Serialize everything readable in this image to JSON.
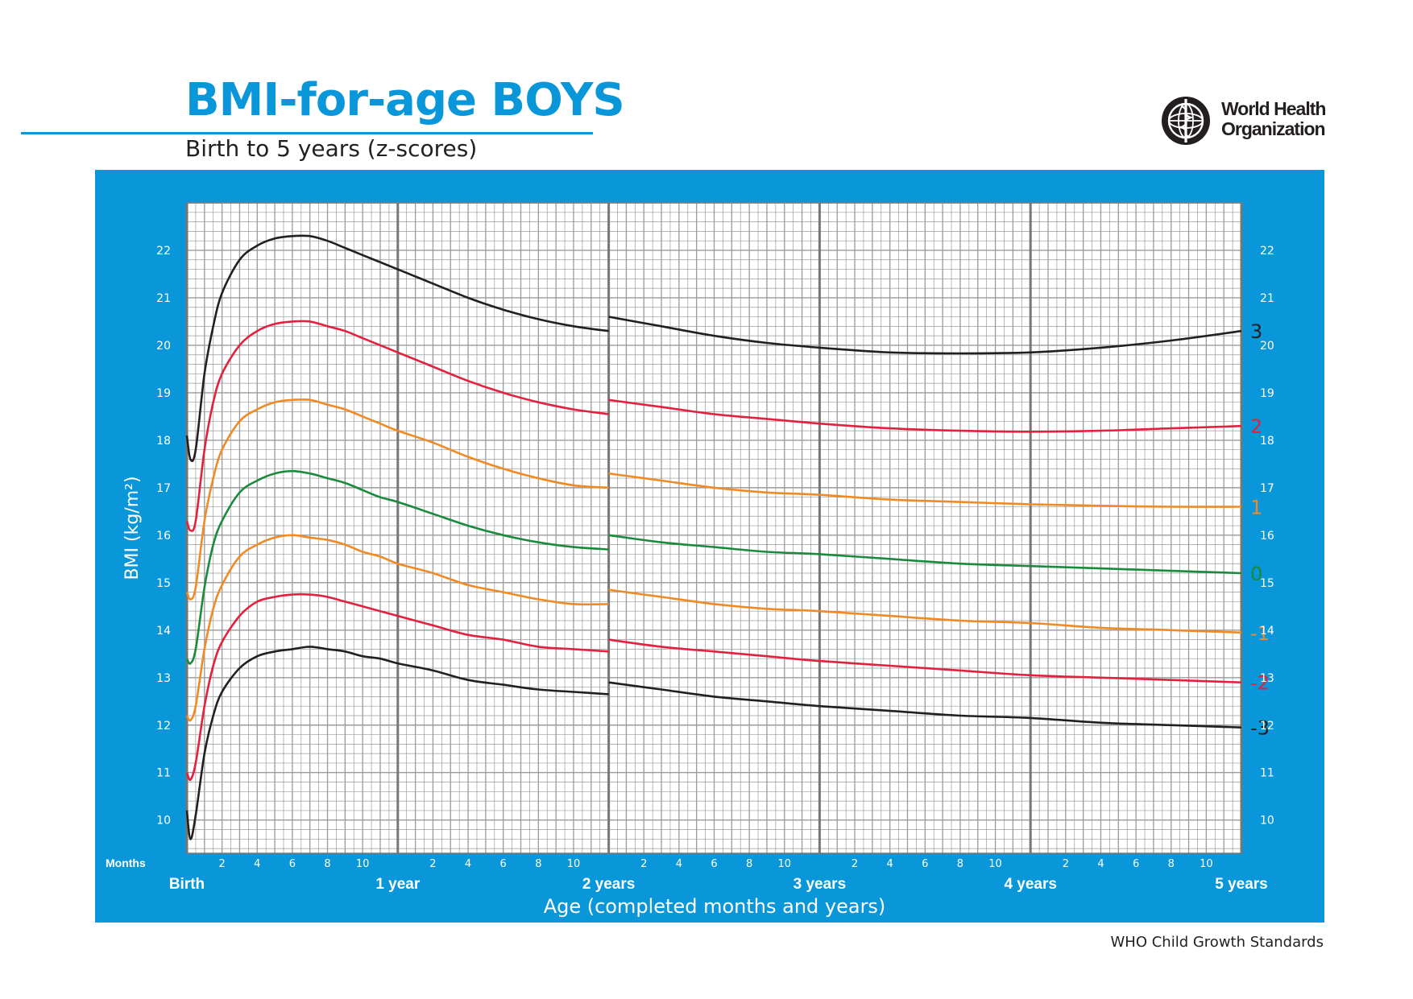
{
  "header": {
    "title": "BMI-for-age BOYS",
    "subtitle": "Birth to 5 years (z-scores)",
    "logo_line1": "World Health",
    "logo_line2": "Organization"
  },
  "footer": {
    "source": "WHO Child Growth Standards"
  },
  "colors": {
    "brand_blue": "#0a97d9",
    "z3": "#231f20",
    "z2": "#e2213f",
    "z1": "#f08a24",
    "z0": "#1a8a3c"
  },
  "chart_data": {
    "type": "line",
    "title": "BMI-for-age BOYS",
    "subtitle": "Birth to 5 years (z-scores)",
    "xlabel": "Age (completed months and years)",
    "ylabel": "BMI (kg/m²)",
    "x_unit": "months",
    "xlim": [
      0,
      60
    ],
    "ylim": [
      9.3,
      23.0
    ],
    "grid": true,
    "months_label": "Months",
    "month_ticks": [
      "2",
      "4",
      "6",
      "8",
      "10"
    ],
    "year_labels": [
      "Birth",
      "1 year",
      "2 years",
      "3 years",
      "4 years",
      "5 years"
    ],
    "y_ticks": [
      10,
      11,
      12,
      13,
      14,
      15,
      16,
      17,
      18,
      19,
      20,
      21,
      22
    ],
    "series_break_at_month": 24,
    "series": [
      {
        "name": "3",
        "color": "#231f20",
        "x": [
          0,
          0.2,
          0.5,
          1,
          1.5,
          2,
          3,
          4,
          5,
          6,
          7,
          8,
          9,
          10,
          11,
          12,
          14,
          16,
          18,
          20,
          22,
          24,
          24,
          27,
          30,
          33,
          36,
          40,
          44,
          48,
          52,
          56,
          60
        ],
        "y": [
          18.1,
          17.6,
          17.8,
          19.4,
          20.4,
          21.1,
          21.8,
          22.1,
          22.25,
          22.3,
          22.3,
          22.2,
          22.05,
          21.9,
          21.75,
          21.6,
          21.3,
          21.0,
          20.75,
          20.55,
          20.4,
          20.3,
          20.6,
          20.4,
          20.2,
          20.05,
          19.95,
          19.85,
          19.83,
          19.85,
          19.95,
          20.1,
          20.3
        ]
      },
      {
        "name": "2",
        "color": "#e2213f",
        "x": [
          0,
          0.2,
          0.5,
          1,
          1.5,
          2,
          3,
          4,
          5,
          6,
          7,
          8,
          9,
          10,
          11,
          12,
          14,
          16,
          18,
          20,
          22,
          24,
          24,
          27,
          30,
          33,
          36,
          40,
          44,
          48,
          52,
          56,
          60
        ],
        "y": [
          16.3,
          16.1,
          16.3,
          17.8,
          18.8,
          19.4,
          20.0,
          20.3,
          20.45,
          20.5,
          20.5,
          20.4,
          20.3,
          20.15,
          20.0,
          19.85,
          19.55,
          19.25,
          19.0,
          18.8,
          18.65,
          18.55,
          18.85,
          18.7,
          18.55,
          18.45,
          18.35,
          18.25,
          18.2,
          18.18,
          18.2,
          18.25,
          18.3
        ]
      },
      {
        "name": "1",
        "color": "#f08a24",
        "x": [
          0,
          0.2,
          0.5,
          1,
          1.5,
          2,
          3,
          4,
          5,
          6,
          7,
          8,
          9,
          10,
          11,
          12,
          14,
          16,
          18,
          20,
          22,
          24,
          24,
          27,
          30,
          33,
          36,
          40,
          44,
          48,
          52,
          56,
          60
        ],
        "y": [
          14.8,
          14.65,
          14.9,
          16.3,
          17.2,
          17.8,
          18.4,
          18.65,
          18.8,
          18.85,
          18.85,
          18.75,
          18.65,
          18.5,
          18.35,
          18.2,
          17.95,
          17.65,
          17.4,
          17.2,
          17.05,
          17.0,
          17.3,
          17.15,
          17.0,
          16.9,
          16.85,
          16.75,
          16.7,
          16.65,
          16.62,
          16.6,
          16.6
        ]
      },
      {
        "name": "0",
        "color": "#1a8a3c",
        "x": [
          0,
          0.2,
          0.5,
          1,
          1.5,
          2,
          3,
          4,
          5,
          6,
          7,
          8,
          9,
          10,
          11,
          12,
          14,
          16,
          18,
          20,
          22,
          24,
          24,
          27,
          30,
          33,
          36,
          40,
          44,
          48,
          52,
          56,
          60
        ],
        "y": [
          13.4,
          13.3,
          13.6,
          14.9,
          15.8,
          16.3,
          16.9,
          17.15,
          17.3,
          17.35,
          17.3,
          17.2,
          17.1,
          16.95,
          16.8,
          16.7,
          16.45,
          16.2,
          16.0,
          15.85,
          15.75,
          15.7,
          16.0,
          15.85,
          15.75,
          15.65,
          15.6,
          15.5,
          15.4,
          15.35,
          15.3,
          15.25,
          15.2
        ]
      },
      {
        "name": "-1",
        "color": "#f08a24",
        "x": [
          0,
          0.2,
          0.5,
          1,
          1.5,
          2,
          3,
          4,
          5,
          6,
          7,
          8,
          9,
          10,
          11,
          12,
          14,
          16,
          18,
          20,
          22,
          24,
          24,
          27,
          30,
          33,
          36,
          40,
          44,
          48,
          52,
          56,
          60
        ],
        "y": [
          12.2,
          12.1,
          12.4,
          13.6,
          14.45,
          14.95,
          15.55,
          15.8,
          15.95,
          16.0,
          15.95,
          15.9,
          15.8,
          15.65,
          15.55,
          15.4,
          15.2,
          14.95,
          14.8,
          14.65,
          14.55,
          14.55,
          14.85,
          14.7,
          14.55,
          14.45,
          14.4,
          14.3,
          14.2,
          14.15,
          14.05,
          14.0,
          13.95
        ]
      },
      {
        "name": "-2",
        "color": "#e2213f",
        "x": [
          0,
          0.2,
          0.5,
          1,
          1.5,
          2,
          3,
          4,
          5,
          6,
          7,
          8,
          9,
          10,
          11,
          12,
          14,
          16,
          18,
          20,
          22,
          24,
          24,
          27,
          30,
          33,
          36,
          40,
          44,
          48,
          52,
          56,
          60
        ],
        "y": [
          11.0,
          10.85,
          11.2,
          12.4,
          13.25,
          13.75,
          14.3,
          14.6,
          14.7,
          14.75,
          14.75,
          14.7,
          14.6,
          14.5,
          14.4,
          14.3,
          14.1,
          13.9,
          13.8,
          13.65,
          13.6,
          13.55,
          13.8,
          13.65,
          13.55,
          13.45,
          13.35,
          13.25,
          13.15,
          13.05,
          13.0,
          12.95,
          12.9
        ]
      },
      {
        "name": "-3",
        "color": "#231f20",
        "x": [
          0,
          0.2,
          0.5,
          1,
          1.5,
          2,
          3,
          4,
          5,
          6,
          7,
          8,
          9,
          10,
          11,
          12,
          14,
          16,
          18,
          20,
          22,
          24,
          24,
          27,
          30,
          33,
          36,
          40,
          44,
          48,
          52,
          56,
          60
        ],
        "y": [
          10.2,
          9.6,
          10.1,
          11.4,
          12.2,
          12.7,
          13.2,
          13.45,
          13.55,
          13.6,
          13.65,
          13.6,
          13.55,
          13.45,
          13.4,
          13.3,
          13.15,
          12.95,
          12.85,
          12.75,
          12.7,
          12.65,
          12.9,
          12.75,
          12.6,
          12.5,
          12.4,
          12.3,
          12.2,
          12.15,
          12.05,
          12.0,
          11.95
        ]
      }
    ]
  }
}
